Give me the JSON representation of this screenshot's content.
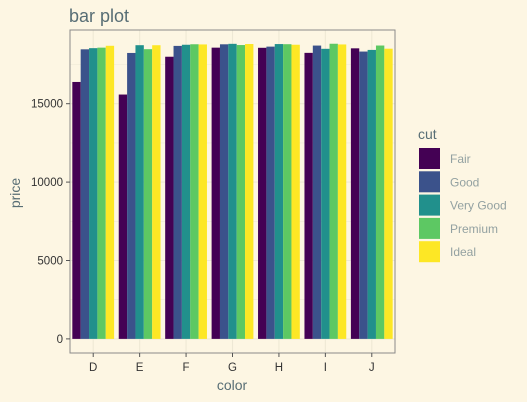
{
  "chart_data": {
    "type": "bar",
    "title": "bar plot",
    "xlabel": "color",
    "ylabel": "price",
    "categories": [
      "D",
      "E",
      "F",
      "G",
      "H",
      "I",
      "J"
    ],
    "ylim": [
      -900,
      19700
    ],
    "yticks": [
      0,
      5000,
      10000,
      15000
    ],
    "grid": true,
    "legend_title": "cut",
    "legend_position": "right",
    "series": [
      {
        "name": "Fair",
        "color": "#440154",
        "values": [
          16386,
          15584,
          17995,
          18574,
          18565,
          18242,
          18531
        ]
      },
      {
        "name": "Good",
        "color": "#3b528b",
        "values": [
          18468,
          18236,
          18686,
          18788,
          18640,
          18707,
          18325
        ]
      },
      {
        "name": "Very Good",
        "color": "#21908c",
        "values": [
          18542,
          18731,
          18759,
          18818,
          18803,
          18500,
          18430
        ]
      },
      {
        "name": "Premium",
        "color": "#5dc863",
        "values": [
          18575,
          18477,
          18791,
          18741,
          18795,
          18823,
          18710
        ]
      },
      {
        "name": "Ideal",
        "color": "#fde725",
        "values": [
          18693,
          18729,
          18780,
          18806,
          18760,
          18779,
          18508
        ]
      }
    ]
  }
}
